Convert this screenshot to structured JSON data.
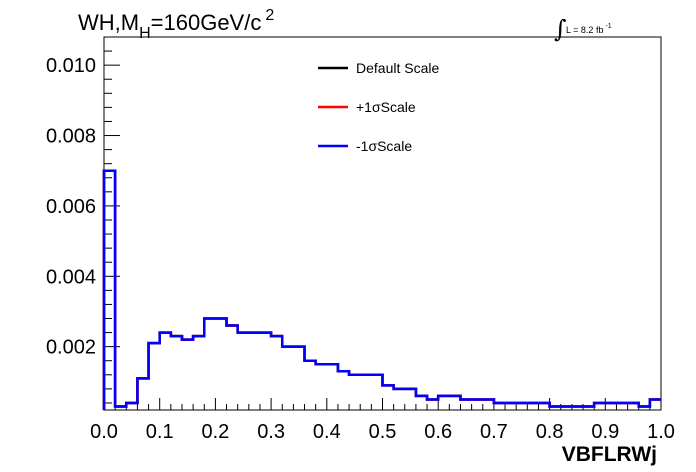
{
  "chart_data": {
    "type": "line",
    "style": "step-histogram",
    "title_parts": {
      "main": "WH,M",
      "sub": "H",
      "rest": "=160GeV/c",
      "sup": "2"
    },
    "lumi_label": {
      "integral_sign": "∫",
      "text": "L = 8.2 fb",
      "sup": "-1"
    },
    "xlabel": "VBFLRWj",
    "ylabel": "",
    "xlim": [
      0.0,
      1.0
    ],
    "ylim": [
      0.0002,
      0.0108
    ],
    "x_ticks": [
      "0.0",
      "0.1",
      "0.2",
      "0.3",
      "0.4",
      "0.5",
      "0.6",
      "0.7",
      "0.8",
      "0.9",
      "1.0"
    ],
    "x_tick_values": [
      0.0,
      0.1,
      0.2,
      0.3,
      0.4,
      0.5,
      0.6,
      0.7,
      0.8,
      0.9,
      1.0
    ],
    "y_ticks": [
      "0.002",
      "0.004",
      "0.006",
      "0.008",
      "0.010"
    ],
    "y_tick_values": [
      0.002,
      0.004,
      0.006,
      0.008,
      0.01
    ],
    "grid": false,
    "legend_placement": "top-center",
    "bin_edges": [
      0.0,
      0.02,
      0.04,
      0.06,
      0.08,
      0.1,
      0.12,
      0.14,
      0.16,
      0.18,
      0.2,
      0.22,
      0.24,
      0.26,
      0.28,
      0.3,
      0.32,
      0.34,
      0.36,
      0.38,
      0.4,
      0.42,
      0.44,
      0.46,
      0.48,
      0.5,
      0.52,
      0.54,
      0.56,
      0.58,
      0.6,
      0.62,
      0.64,
      0.66,
      0.68,
      0.7,
      0.72,
      0.74,
      0.76,
      0.78,
      0.8,
      0.82,
      0.84,
      0.86,
      0.88,
      0.9,
      0.92,
      0.94,
      0.96,
      0.98,
      1.0
    ],
    "series": [
      {
        "name": "Default Scale",
        "color": "#000000",
        "values": [
          0.007,
          0.0003,
          0.0004,
          0.0011,
          0.0021,
          0.0024,
          0.0023,
          0.0022,
          0.0023,
          0.0028,
          0.0028,
          0.0026,
          0.0024,
          0.0024,
          0.0024,
          0.0023,
          0.002,
          0.002,
          0.0016,
          0.0015,
          0.0015,
          0.0013,
          0.0012,
          0.0012,
          0.0012,
          0.0009,
          0.0008,
          0.0008,
          0.0006,
          0.0005,
          0.0006,
          0.0006,
          0.0005,
          0.0005,
          0.0005,
          0.0004,
          0.0004,
          0.0004,
          0.0004,
          0.0004,
          0.0003,
          0.0003,
          0.0003,
          0.0003,
          0.0004,
          0.0004,
          0.0004,
          0.0004,
          0.0003,
          0.0005
        ]
      },
      {
        "name": "+1σScale",
        "color": "#ff0000",
        "values": [
          0.007,
          0.0003,
          0.0004,
          0.0011,
          0.0021,
          0.0024,
          0.0023,
          0.0022,
          0.0023,
          0.0028,
          0.0028,
          0.0026,
          0.0024,
          0.0024,
          0.0024,
          0.0023,
          0.002,
          0.002,
          0.0016,
          0.0015,
          0.0015,
          0.0013,
          0.0012,
          0.0012,
          0.0012,
          0.0009,
          0.0008,
          0.0008,
          0.0006,
          0.0005,
          0.0006,
          0.0006,
          0.0005,
          0.0005,
          0.0005,
          0.0004,
          0.0004,
          0.0004,
          0.0004,
          0.0004,
          0.0003,
          0.0003,
          0.0003,
          0.0003,
          0.0004,
          0.0004,
          0.0004,
          0.0004,
          0.0003,
          0.0005
        ]
      },
      {
        "name": "-1σScale",
        "color": "#0000ff",
        "values": [
          0.007,
          0.0003,
          0.0004,
          0.0011,
          0.0021,
          0.0024,
          0.0023,
          0.0022,
          0.0023,
          0.0028,
          0.0028,
          0.0026,
          0.0024,
          0.0024,
          0.0024,
          0.0023,
          0.002,
          0.002,
          0.0016,
          0.0015,
          0.0015,
          0.0013,
          0.0012,
          0.0012,
          0.0012,
          0.0009,
          0.0008,
          0.0008,
          0.0006,
          0.0005,
          0.0006,
          0.0006,
          0.0005,
          0.0005,
          0.0005,
          0.0004,
          0.0004,
          0.0004,
          0.0004,
          0.0004,
          0.0003,
          0.0003,
          0.0003,
          0.0003,
          0.0004,
          0.0004,
          0.0004,
          0.0004,
          0.0003,
          0.0005
        ]
      }
    ]
  }
}
